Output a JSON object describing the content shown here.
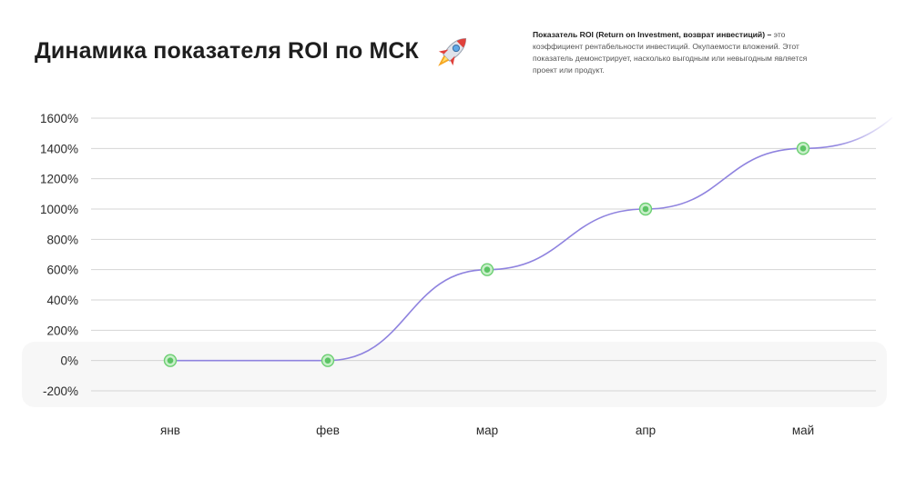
{
  "title": "Динамика показателя ROI по МСК",
  "note": {
    "bold": "Показатель ROI (Return on Investment, возврат инвестиций) –",
    "text": "это коэффициент рентабельности инвестиций. Окупаемости вложений. Этот показатель демонстрирует, насколько выгодным или невыгодным является проект или продукт."
  },
  "colors": {
    "line": "#8f83df",
    "marker_fill": "#c8efc9",
    "marker_ring": "#6ccf72",
    "marker_dot": "#5cc465",
    "grid": "#d4d4d4",
    "zero_band": "#f7f7f7"
  },
  "chart_data": {
    "type": "line",
    "categories": [
      "янв",
      "фев",
      "мар",
      "апр",
      "май"
    ],
    "series": [
      {
        "values": [
          0,
          0,
          600,
          1000,
          1400
        ]
      }
    ],
    "ylim": [
      -200,
      1600
    ],
    "yticks": [
      "1600%",
      "1400%",
      "1200%",
      "1000%",
      "800%",
      "600%",
      "400%",
      "200%",
      "0%",
      "-200%"
    ],
    "ytick_values": [
      1600,
      1400,
      1200,
      1000,
      800,
      600,
      400,
      200,
      0,
      -200
    ],
    "grid": true,
    "smooth": true
  }
}
